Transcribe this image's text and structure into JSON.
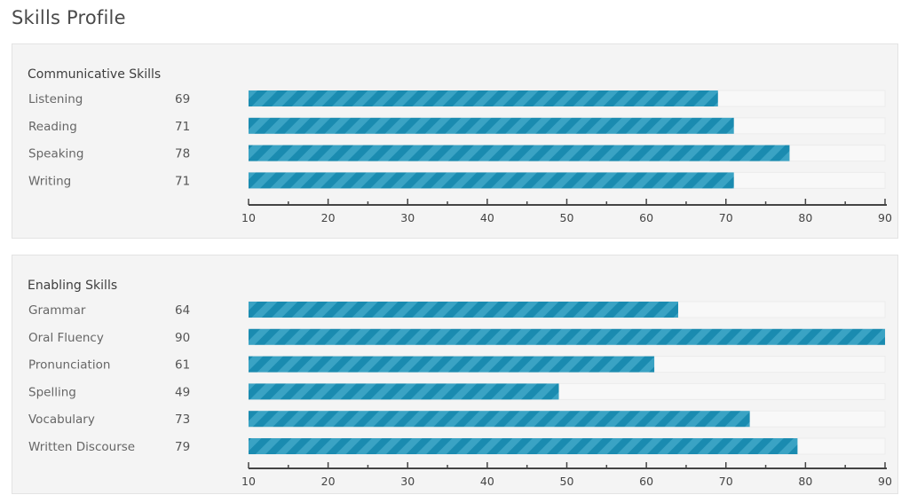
{
  "page": {
    "title": "Skills Profile"
  },
  "colors": {
    "bar": "#1a8bb0",
    "bar_stripe": "#3aa3c4",
    "track": "#f8f8f8",
    "axis": "#444444"
  },
  "chart_data": [
    {
      "type": "bar",
      "orientation": "horizontal",
      "title": "Communicative Skills",
      "categories": [
        "Listening",
        "Reading",
        "Speaking",
        "Writing"
      ],
      "values": [
        69,
        71,
        78,
        71
      ],
      "value_labels": [
        "69",
        "71",
        "78",
        "71"
      ],
      "xlim": [
        10,
        90
      ],
      "ticks": [
        "10",
        "20",
        "30",
        "40",
        "50",
        "60",
        "70",
        "80",
        "90"
      ]
    },
    {
      "type": "bar",
      "orientation": "horizontal",
      "title": "Enabling Skills",
      "categories": [
        "Grammar",
        "Oral Fluency",
        "Pronunciation",
        "Spelling",
        "Vocabulary",
        "Written Discourse"
      ],
      "values": [
        64,
        90,
        61,
        49,
        73,
        79
      ],
      "value_labels": [
        "64",
        "90",
        "61",
        "49",
        "73",
        "79"
      ],
      "xlim": [
        10,
        90
      ],
      "ticks": [
        "10",
        "20",
        "30",
        "40",
        "50",
        "60",
        "70",
        "80",
        "90"
      ]
    }
  ]
}
